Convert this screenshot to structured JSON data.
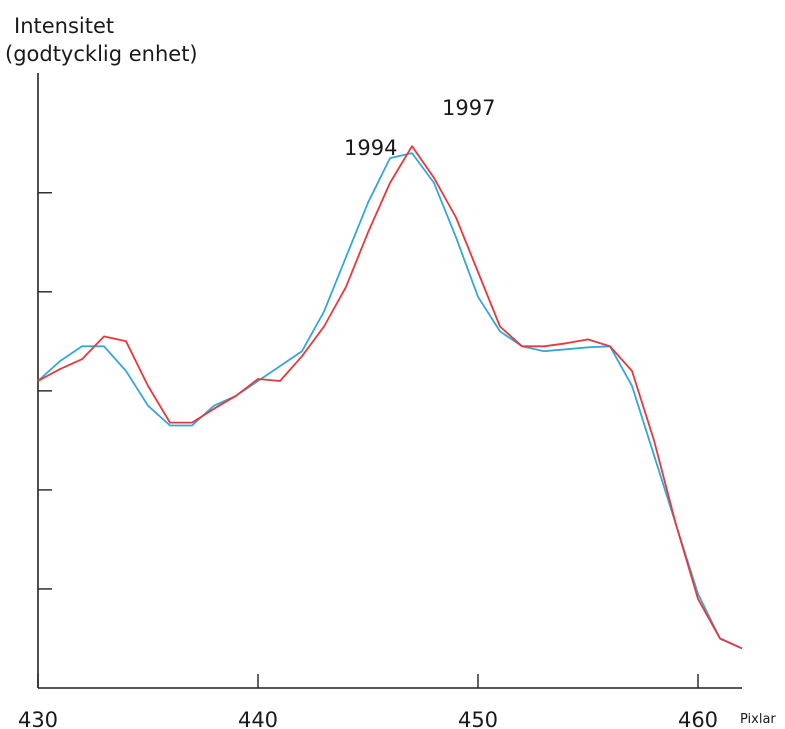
{
  "chart_data": {
    "type": "line",
    "title": "",
    "ylabel_line1": "Intensitet",
    "ylabel_line2": "(godtycklig enhet)",
    "xlabel": "Pixlar",
    "xlim": [
      430,
      462
    ],
    "xticks": [
      430,
      440,
      450,
      460
    ],
    "xtick_labels": [
      "430",
      "440",
      "450",
      "460"
    ],
    "ylim": [
      0,
      6.3
    ],
    "yticks": [
      1,
      2,
      3,
      4,
      5
    ],
    "grid": false,
    "series": [
      {
        "name": "1994",
        "color": "#33a8d8",
        "x": [
          430,
          431,
          432,
          433,
          434,
          435,
          436,
          437,
          438,
          439,
          440,
          441,
          442,
          443,
          444,
          445,
          446,
          447,
          448,
          449,
          450,
          451,
          452,
          453,
          454,
          455,
          456,
          457,
          458,
          459,
          460,
          461,
          462
        ],
        "y": [
          3.1,
          3.3,
          3.45,
          3.45,
          3.2,
          2.85,
          2.65,
          2.65,
          2.85,
          2.95,
          3.1,
          3.25,
          3.4,
          3.8,
          4.35,
          4.9,
          5.35,
          5.4,
          5.1,
          4.55,
          3.95,
          3.6,
          3.45,
          3.4,
          3.42,
          3.44,
          3.45,
          3.05,
          2.35,
          1.65,
          0.95,
          0.5,
          0.4
        ]
      },
      {
        "name": "1997",
        "color": "#e8383d",
        "x": [
          430,
          431,
          432,
          433,
          434,
          435,
          436,
          437,
          438,
          439,
          440,
          441,
          442,
          443,
          444,
          445,
          446,
          447,
          448,
          449,
          450,
          451,
          452,
          453,
          454,
          455,
          456,
          457,
          458,
          459,
          460,
          461,
          462
        ],
        "y": [
          3.1,
          3.22,
          3.32,
          3.55,
          3.5,
          3.05,
          2.68,
          2.68,
          2.82,
          2.95,
          3.12,
          3.1,
          3.35,
          3.65,
          4.05,
          4.6,
          5.1,
          5.47,
          5.15,
          4.75,
          4.2,
          3.65,
          3.45,
          3.45,
          3.48,
          3.52,
          3.45,
          3.2,
          2.5,
          1.65,
          0.9,
          0.5,
          0.4
        ]
      }
    ]
  }
}
